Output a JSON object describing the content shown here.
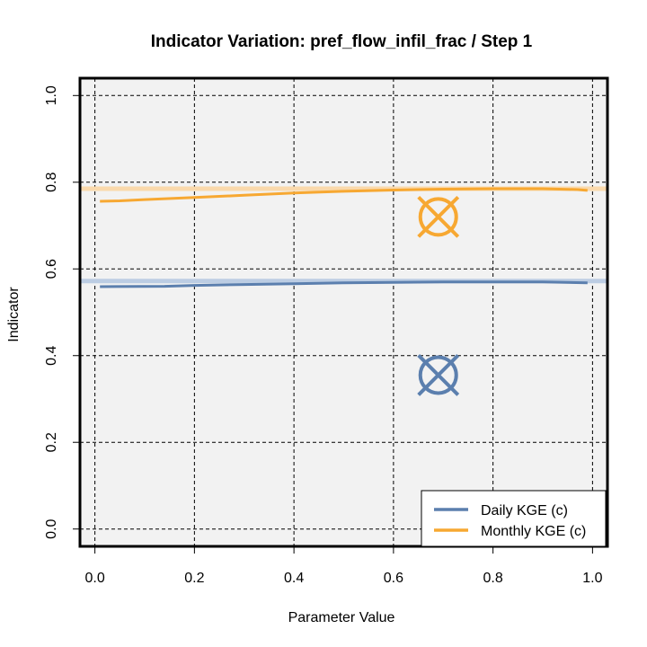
{
  "chart_data": {
    "type": "line",
    "title": "Indicator Variation: pref_flow_infil_frac / Step 1",
    "xlabel": "Parameter Value",
    "ylabel": "Indicator",
    "xlim": [
      -0.03,
      1.03
    ],
    "ylim": [
      -0.04,
      1.04
    ],
    "x_ticks": [
      "0.0",
      "0.2",
      "0.4",
      "0.6",
      "0.8",
      "1.0"
    ],
    "y_ticks": [
      "0.0",
      "0.2",
      "0.4",
      "0.6",
      "0.8",
      "1.0"
    ],
    "grid": true,
    "background": "#f2f2f2",
    "legend_position": "bottom-right",
    "series": [
      {
        "name": "Daily KGE (c)",
        "color": "#5b7fae",
        "reference_color": "#bccde3",
        "reference_value": 0.572,
        "x": [
          0.01,
          0.14,
          0.2,
          0.3,
          0.4,
          0.5,
          0.6,
          0.7,
          0.8,
          0.9,
          0.99
        ],
        "y": [
          0.559,
          0.56,
          0.562,
          0.564,
          0.566,
          0.568,
          0.569,
          0.57,
          0.57,
          0.57,
          0.568
        ],
        "current_point": {
          "x": 0.69,
          "y": 0.355
        }
      },
      {
        "name": "Monthly KGE (c)",
        "color": "#f7a832",
        "reference_color": "#fad9ac",
        "reference_value": 0.785,
        "x": [
          0.01,
          0.05,
          0.1,
          0.2,
          0.3,
          0.4,
          0.5,
          0.6,
          0.7,
          0.8,
          0.9,
          0.97,
          0.99
        ],
        "y": [
          0.756,
          0.757,
          0.76,
          0.765,
          0.77,
          0.775,
          0.779,
          0.782,
          0.784,
          0.785,
          0.785,
          0.783,
          0.781
        ],
        "current_point": {
          "x": 0.69,
          "y": 0.72
        }
      }
    ]
  }
}
